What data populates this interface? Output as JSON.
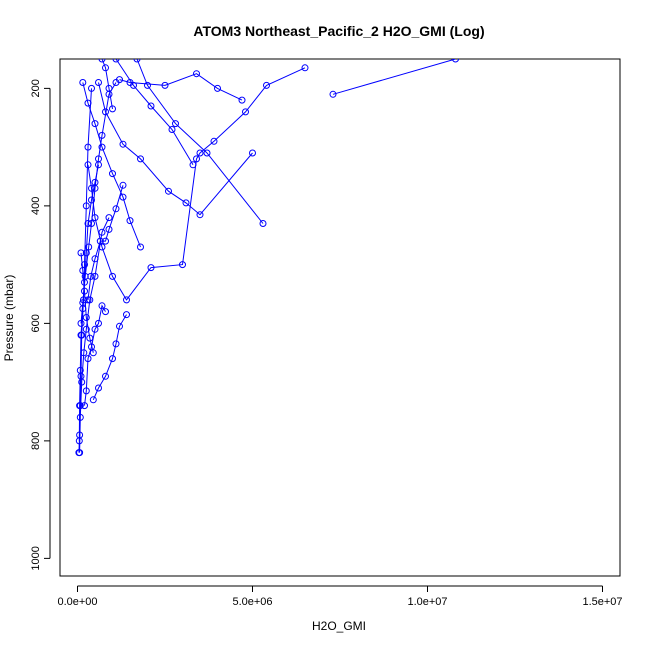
{
  "chart_data": {
    "type": "line",
    "title": "ATOM3 Northeast_Pacific_2 H2O_GMI (Log)",
    "xlabel": "H2O_GMI",
    "ylabel": "Pressure (mbar)",
    "xlim": [
      -500000,
      15500000
    ],
    "ylim": [
      1030,
      150
    ],
    "y_reversed": true,
    "xticks": [
      0,
      5000000,
      10000000,
      15000000
    ],
    "xtick_labels": [
      "0.0e+00",
      "5.0e+06",
      "1.0e+07",
      "1.5e+07"
    ],
    "yticks": [
      200,
      400,
      600,
      800,
      1000
    ],
    "ytick_labels": [
      "200",
      "400",
      "600",
      "800",
      "1000"
    ],
    "color": "#0000ff",
    "series": [
      {
        "points": [
          [
            5300000,
            430
          ],
          [
            3700000,
            310
          ],
          [
            2800000,
            260
          ],
          [
            2000000,
            195
          ],
          [
            1700000,
            150
          ]
        ]
      },
      {
        "points": [
          [
            5000000,
            310
          ],
          [
            3500000,
            415
          ],
          [
            3100000,
            395
          ],
          [
            2600000,
            375
          ],
          [
            1800000,
            320
          ],
          [
            1300000,
            295
          ],
          [
            800000,
            240
          ],
          [
            600000,
            190
          ]
        ]
      },
      {
        "points": [
          [
            7300000,
            210
          ],
          [
            10800000,
            150
          ]
        ]
      },
      {
        "points": [
          [
            6500000,
            165
          ],
          [
            5400000,
            195
          ],
          [
            4800000,
            240
          ],
          [
            3900000,
            290
          ],
          [
            3500000,
            310
          ],
          [
            3400000,
            320
          ],
          [
            3000000,
            500
          ],
          [
            2100000,
            505
          ],
          [
            1400000,
            560
          ],
          [
            1000000,
            520
          ],
          [
            700000,
            470
          ],
          [
            500000,
            420
          ],
          [
            400000,
            370
          ],
          [
            300000,
            330
          ]
        ]
      },
      {
        "points": [
          [
            1800000,
            470
          ],
          [
            1500000,
            425
          ],
          [
            1300000,
            385
          ],
          [
            1000000,
            345
          ],
          [
            700000,
            300
          ],
          [
            500000,
            260
          ],
          [
            300000,
            225
          ],
          [
            150000,
            190
          ]
        ]
      },
      {
        "points": [
          [
            4700000,
            220
          ],
          [
            4000000,
            200
          ],
          [
            3400000,
            175
          ],
          [
            2500000,
            195
          ],
          [
            1500000,
            190
          ],
          [
            1200000,
            185
          ]
        ]
      },
      {
        "points": [
          [
            3300000,
            330
          ],
          [
            2700000,
            270
          ],
          [
            2100000,
            230
          ],
          [
            1600000,
            195
          ],
          [
            1100000,
            150
          ]
        ]
      },
      {
        "points": [
          [
            1400000,
            585
          ],
          [
            1200000,
            605
          ],
          [
            1100000,
            635
          ],
          [
            1000000,
            660
          ],
          [
            800000,
            690
          ],
          [
            600000,
            710
          ],
          [
            450000,
            730
          ]
        ]
      },
      {
        "points": [
          [
            1300000,
            365
          ],
          [
            1100000,
            405
          ],
          [
            900000,
            440
          ],
          [
            800000,
            460
          ],
          [
            650000,
            460
          ],
          [
            500000,
            490
          ],
          [
            380000,
            520
          ],
          [
            300000,
            560
          ]
        ]
      },
      {
        "points": [
          [
            900000,
            420
          ],
          [
            700000,
            445
          ],
          [
            500000,
            520
          ],
          [
            350000,
            560
          ],
          [
            250000,
            610
          ],
          [
            180000,
            650
          ],
          [
            120000,
            700
          ],
          [
            80000,
            760
          ],
          [
            60000,
            820
          ]
        ]
      },
      {
        "points": [
          [
            600000,
            330
          ],
          [
            500000,
            360
          ],
          [
            400000,
            390
          ],
          [
            300000,
            430
          ],
          [
            250000,
            480
          ],
          [
            200000,
            530
          ],
          [
            150000,
            575
          ],
          [
            100000,
            620
          ],
          [
            80000,
            680
          ],
          [
            60000,
            740
          ],
          [
            50000,
            800
          ]
        ]
      },
      {
        "points": [
          [
            1000000,
            235
          ],
          [
            900000,
            200
          ],
          [
            800000,
            165
          ],
          [
            700000,
            150
          ]
        ]
      },
      {
        "points": [
          [
            450000,
            650
          ],
          [
            350000,
            625
          ],
          [
            250000,
            590
          ],
          [
            200000,
            545
          ],
          [
            150000,
            510
          ],
          [
            100000,
            480
          ]
        ]
      },
      {
        "points": [
          [
            800000,
            580
          ],
          [
            700000,
            570
          ],
          [
            600000,
            600
          ],
          [
            500000,
            610
          ],
          [
            400000,
            640
          ],
          [
            300000,
            660
          ],
          [
            250000,
            715
          ],
          [
            200000,
            740
          ]
        ]
      },
      {
        "points": [
          [
            1100000,
            190
          ],
          [
            900000,
            210
          ],
          [
            700000,
            280
          ],
          [
            600000,
            320
          ],
          [
            500000,
            370
          ],
          [
            400000,
            430
          ],
          [
            320000,
            470
          ],
          [
            220000,
            520
          ],
          [
            150000,
            565
          ],
          [
            100000,
            600
          ]
        ]
      },
      {
        "points": [
          [
            400000,
            200
          ],
          [
            300000,
            300
          ],
          [
            250000,
            400
          ],
          [
            200000,
            500
          ],
          [
            170000,
            560
          ],
          [
            120000,
            620
          ],
          [
            100000,
            690
          ],
          [
            80000,
            740
          ],
          [
            60000,
            790
          ],
          [
            40000,
            820
          ]
        ]
      }
    ]
  }
}
